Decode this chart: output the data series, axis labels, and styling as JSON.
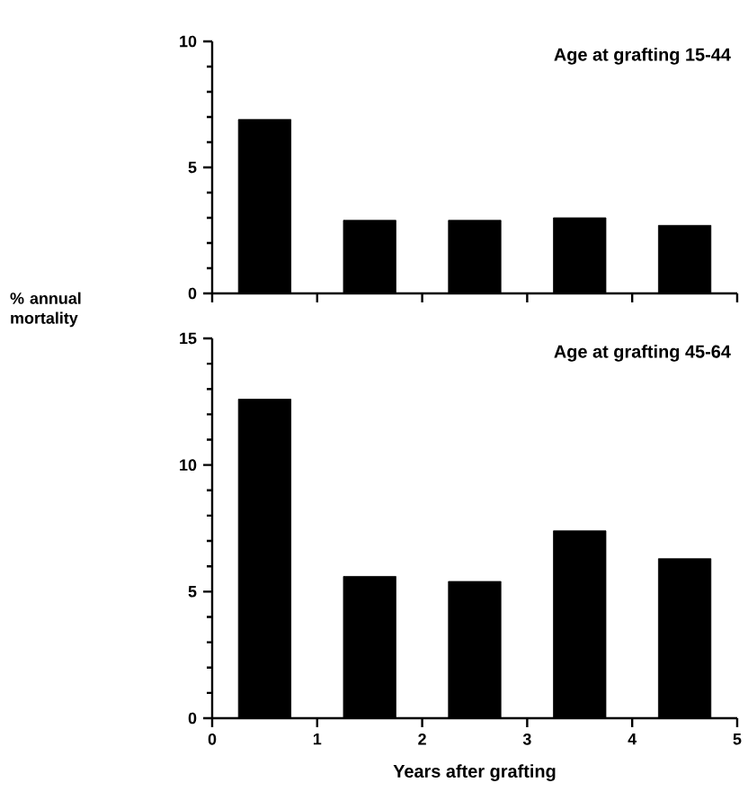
{
  "chart_data": [
    {
      "type": "bar",
      "title": "Age at grafting 15-44",
      "ylabel": "% annual mortality",
      "x": [
        0.5,
        1.5,
        2.5,
        3.5,
        4.5
      ],
      "values": [
        6.9,
        2.9,
        2.9,
        3.0,
        2.7
      ],
      "color": "#000000",
      "xlim": [
        0,
        5
      ],
      "xticks": [
        0,
        1,
        2,
        3,
        4,
        5
      ],
      "ylim": [
        0,
        10
      ],
      "yticks": [
        0,
        5,
        10
      ],
      "tick_labels": "y"
    },
    {
      "type": "bar",
      "title": "Age at grafting 45-64",
      "xlabel": "Years after grafting",
      "x": [
        0.5,
        1.5,
        2.5,
        3.5,
        4.5
      ],
      "values": [
        12.6,
        5.6,
        5.4,
        7.4,
        6.3
      ],
      "color": "#000000",
      "xlim": [
        0,
        5
      ],
      "xticks": [
        0,
        1,
        2,
        3,
        4,
        5
      ],
      "ylim": [
        0,
        15
      ],
      "yticks": [
        0,
        5,
        10,
        15
      ]
    }
  ]
}
